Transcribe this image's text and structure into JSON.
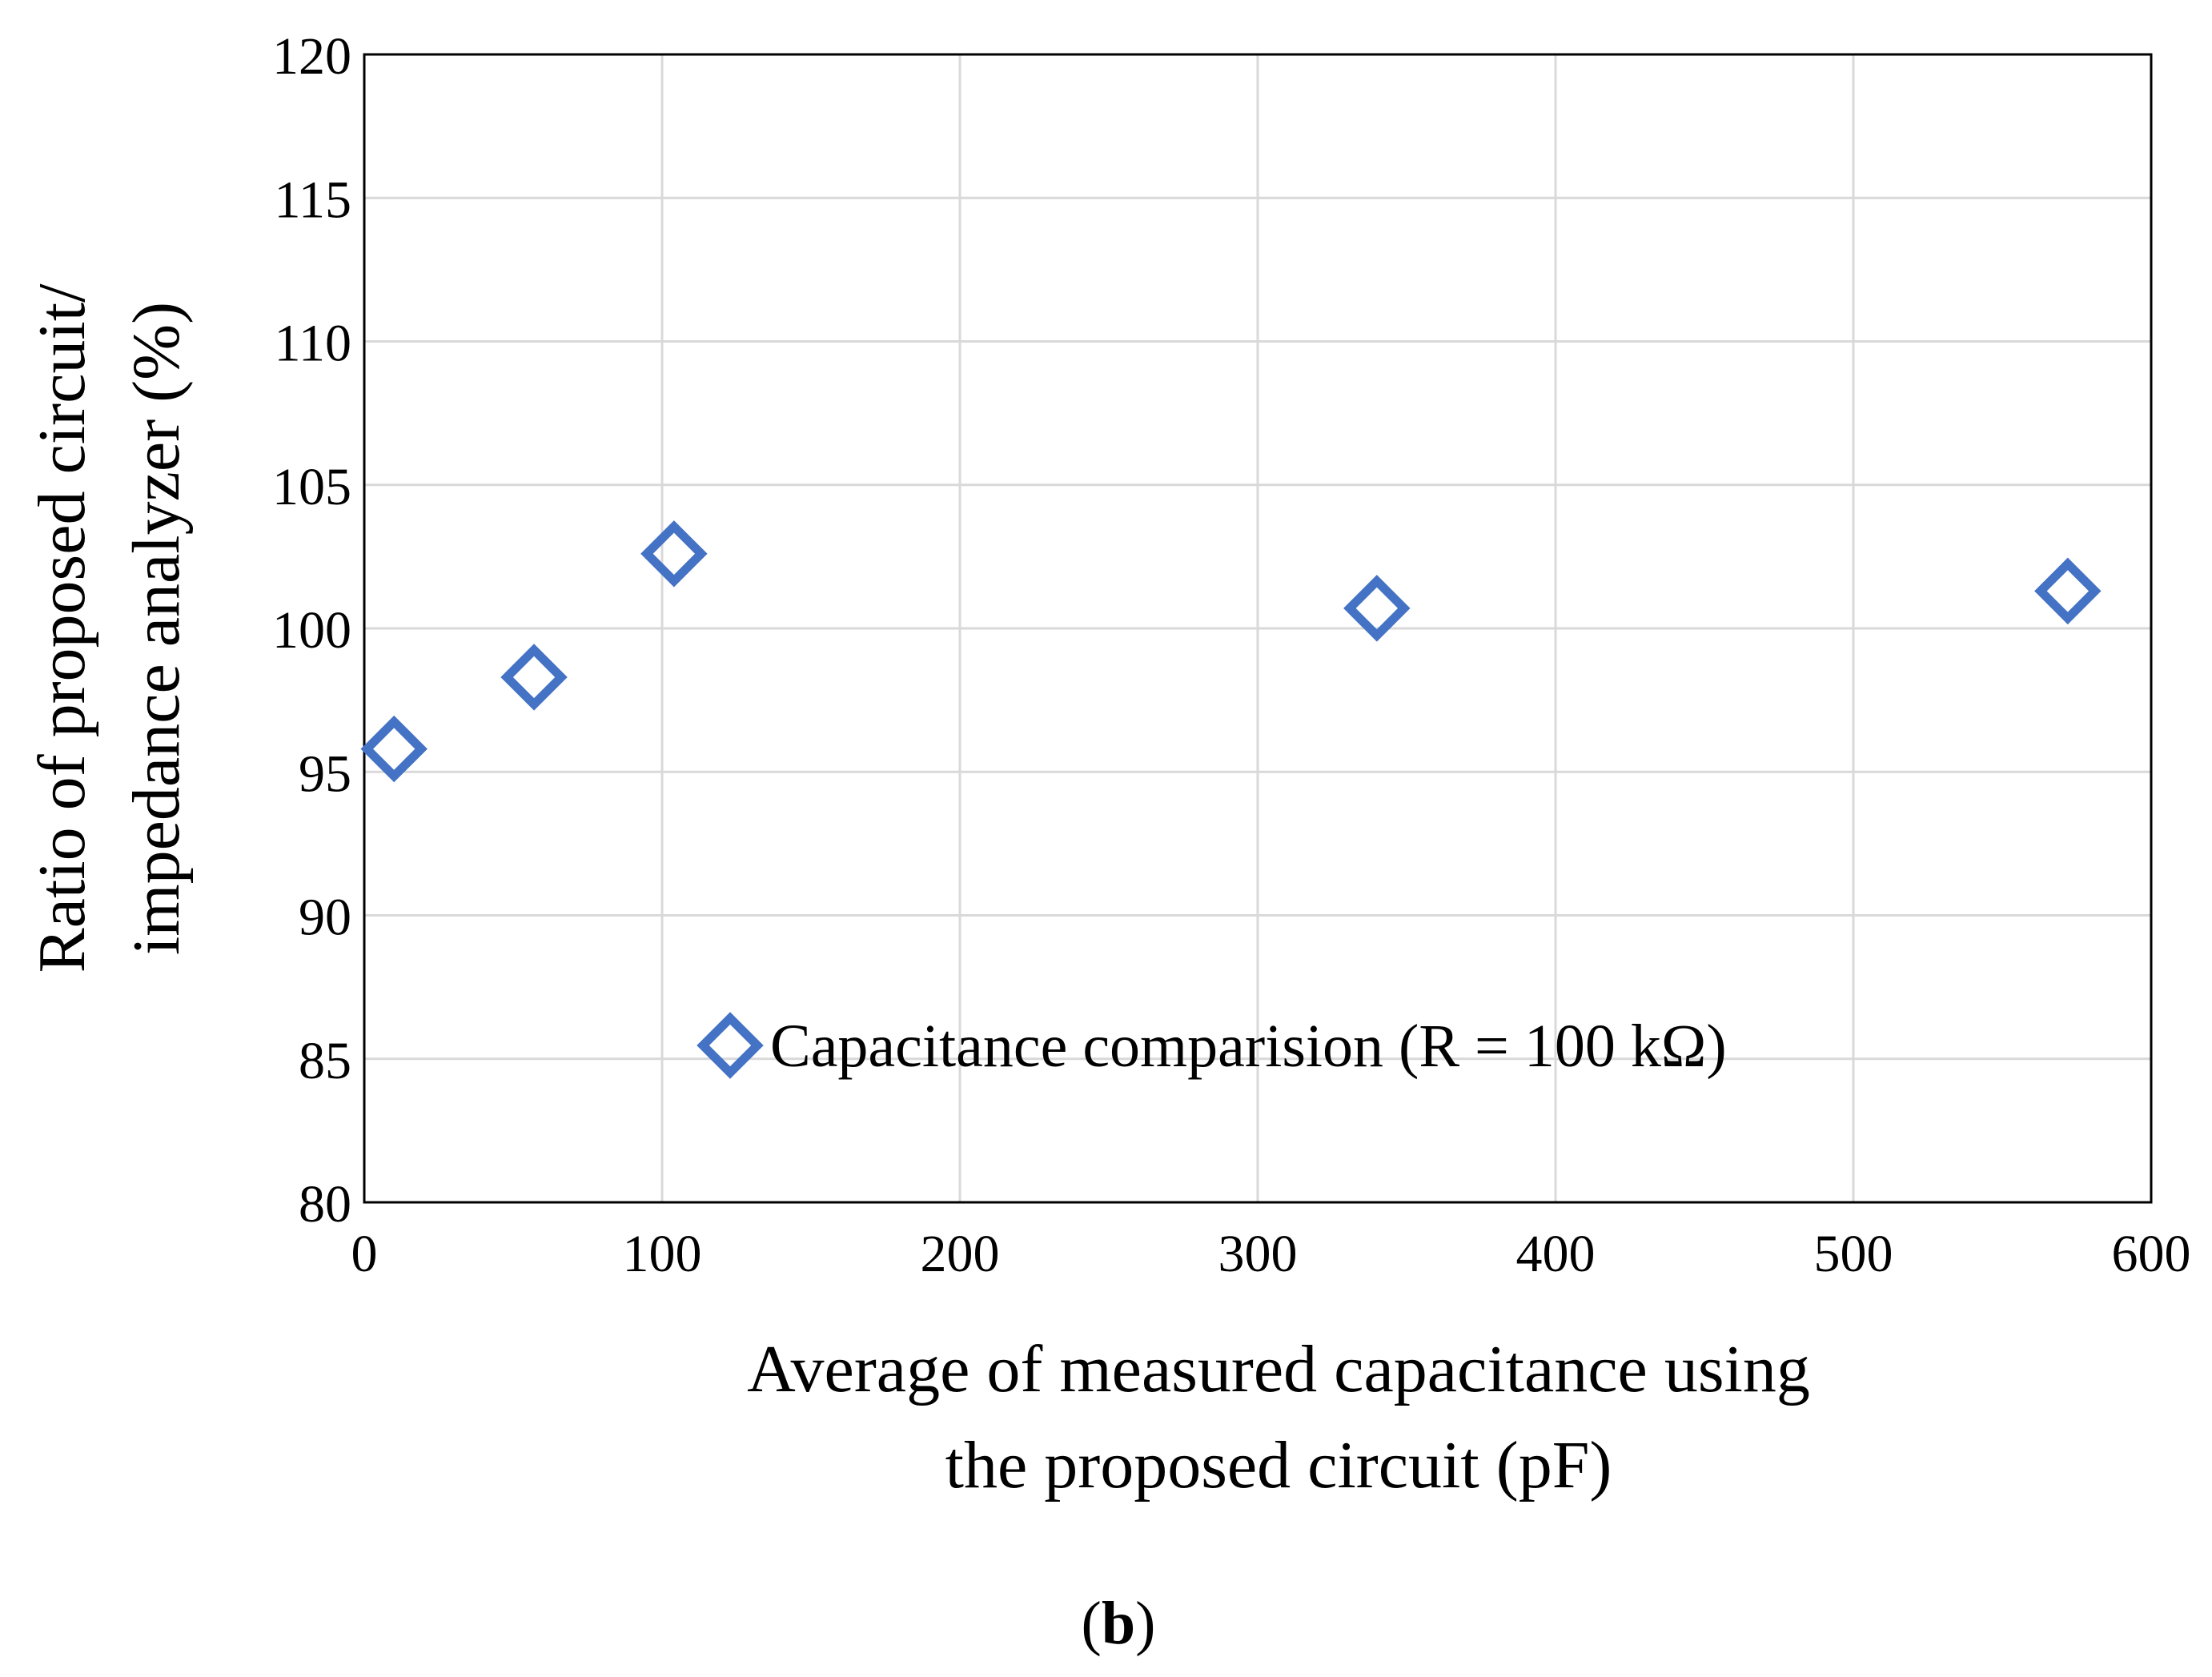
{
  "chart_data": {
    "type": "scatter",
    "title": "",
    "xlabel_lines": [
      "Average of measured capacitance using",
      "the proposed circuit (pF)"
    ],
    "ylabel_lines": [
      "Ratio of proposed circuit/",
      "impedance analyzer (%)"
    ],
    "xlim": [
      0,
      600
    ],
    "ylim": [
      80,
      120
    ],
    "xticks": [
      0,
      100,
      200,
      300,
      400,
      500,
      600
    ],
    "yticks": [
      80,
      85,
      90,
      95,
      100,
      105,
      110,
      115,
      120
    ],
    "grid": true,
    "legend_position": "center-bottom",
    "series": [
      {
        "name": "Capacitance comparision (R = 100 kΩ)",
        "marker": "diamond-open",
        "color": "#4472c4",
        "points": [
          {
            "x": 10,
            "y": 95.8
          },
          {
            "x": 57,
            "y": 98.3
          },
          {
            "x": 104,
            "y": 102.6
          },
          {
            "x": 340,
            "y": 100.7
          },
          {
            "x": 572,
            "y": 101.3
          }
        ]
      }
    ]
  },
  "panel_label": {
    "open": "(",
    "letter": "b",
    "close": ")"
  }
}
